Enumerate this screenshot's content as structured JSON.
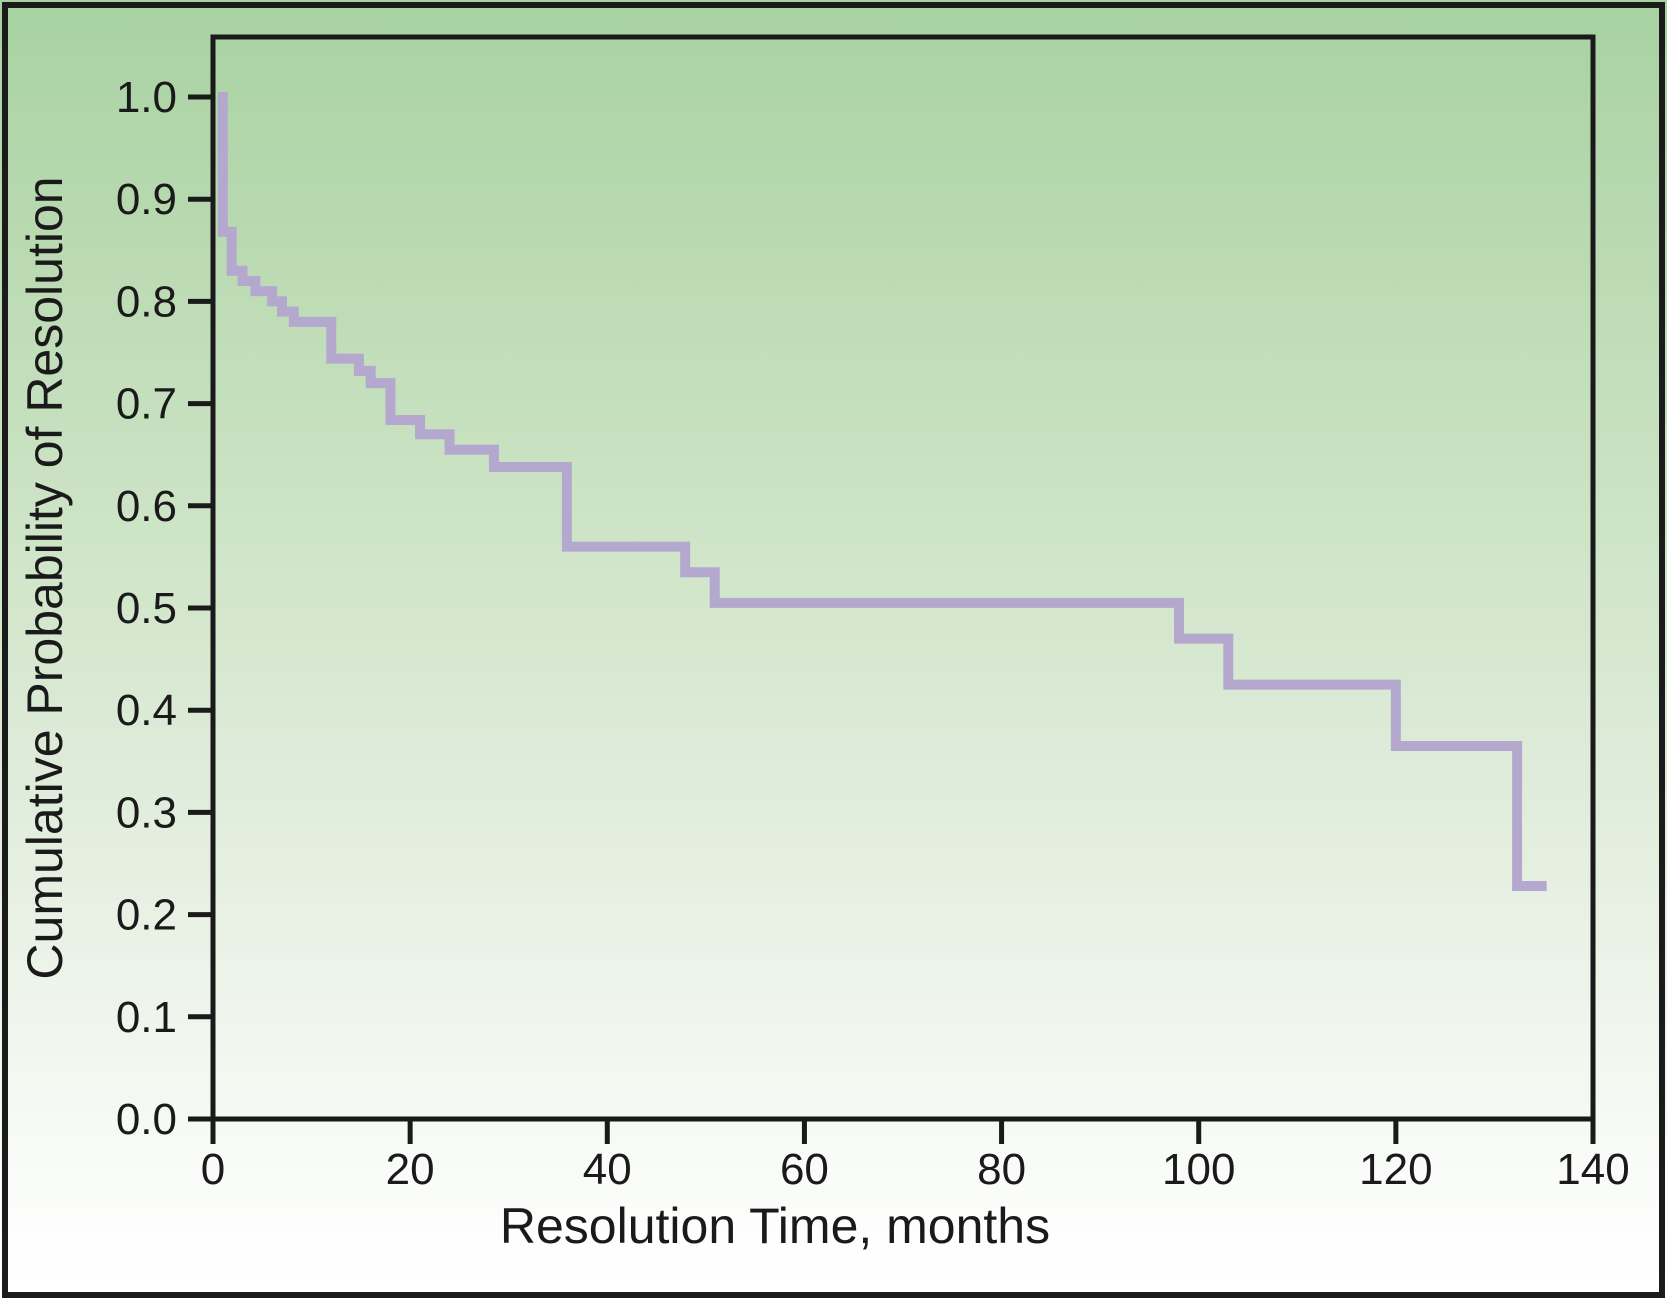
{
  "figure": {
    "frame_color": "#1b1b1b",
    "axis_color": "#1a1a1a",
    "tick_label_color": "#1a1a1a",
    "background_gradient": [
      "#a7d2a1",
      "#cde4c6",
      "#dfecda",
      "#ffffff"
    ],
    "curve_color": "#b5a8ce"
  },
  "chart_data": {
    "type": "line",
    "step_style": "kaplan-meier",
    "title": "",
    "xlabel": "Resolution Time, months",
    "ylabel": "Cumulative Probability of Resolution",
    "xlim": [
      0,
      140
    ],
    "ylim": [
      0.0,
      1.06
    ],
    "grid": false,
    "legend_position": "none",
    "xticks": {
      "values": [
        0,
        20,
        40,
        60,
        80,
        100,
        120,
        140
      ],
      "labels": [
        "0",
        "20",
        "40",
        "60",
        "80",
        "100",
        "120",
        "140"
      ]
    },
    "yticks": {
      "values": [
        0.0,
        0.1,
        0.2,
        0.3,
        0.4,
        0.5,
        0.6,
        0.7,
        0.8,
        0.9,
        1.0
      ],
      "labels": [
        "0.0",
        "0.1",
        "0.2",
        "0.3",
        "0.4",
        "0.5",
        "0.6",
        "0.7",
        "0.8",
        "0.9",
        "1.0"
      ]
    },
    "series": [
      {
        "name": "Cumulative probability of resolution",
        "color": "#b5a8ce",
        "line_width": 10,
        "start": [
          0,
          1.0
        ],
        "drops": [
          [
            1.0,
            0.868
          ],
          [
            1.9,
            0.83
          ],
          [
            3.0,
            0.82
          ],
          [
            4.3,
            0.81
          ],
          [
            6.0,
            0.8
          ],
          [
            7.0,
            0.79
          ],
          [
            8.2,
            0.78
          ],
          [
            12.0,
            0.744
          ],
          [
            14.8,
            0.732
          ],
          [
            16.0,
            0.72
          ],
          [
            18.0,
            0.684
          ],
          [
            21.0,
            0.67
          ],
          [
            24.0,
            0.655
          ],
          [
            28.5,
            0.638
          ],
          [
            35.9,
            0.56
          ],
          [
            47.9,
            0.535
          ],
          [
            50.9,
            0.505
          ],
          [
            98.0,
            0.47
          ],
          [
            103.0,
            0.425
          ],
          [
            120.0,
            0.365
          ],
          [
            132.3,
            0.228
          ]
        ],
        "end_x": 135.3
      }
    ]
  }
}
